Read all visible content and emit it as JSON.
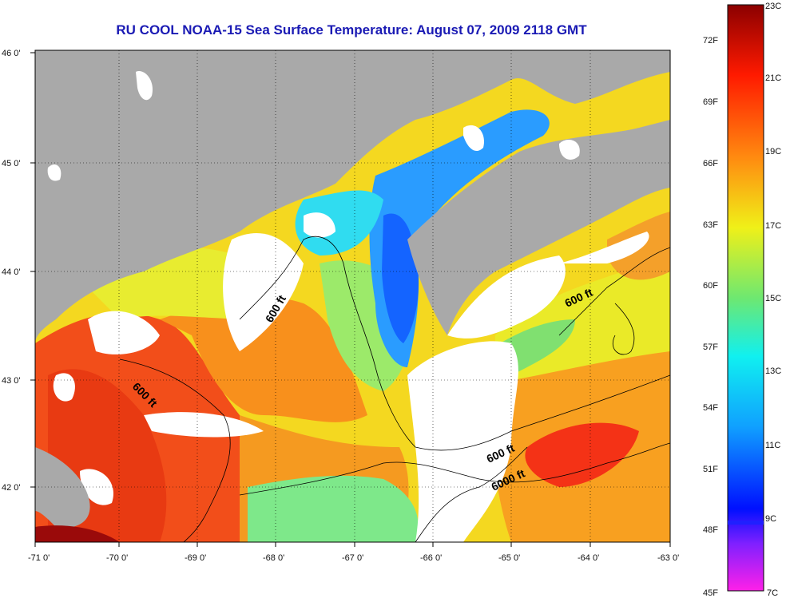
{
  "title": "RU COOL  NOAA-15  Sea Surface Temperature:  August 07, 2009 2118 GMT",
  "map": {
    "x_ticks": [
      "-71 0'",
      "-70 0'",
      "-69 0'",
      "-68 0'",
      "-67 0'",
      "-66 0'",
      "-65 0'",
      "-64 0'",
      "-63 0'"
    ],
    "y_ticks": [
      "46 0'",
      "45 0'",
      "44 0'",
      "43 0'",
      "42 0'"
    ],
    "contour_labels": [
      "600 ft",
      "600 ft",
      "600 ft",
      "600 ft",
      "6000 ft"
    ]
  },
  "colorbar": {
    "celsius": [
      "23C",
      "21C",
      "19C",
      "17C",
      "15C",
      "13C",
      "11C",
      "9C",
      "7C"
    ],
    "fahrenheit": [
      "72F",
      "69F",
      "66F",
      "63F",
      "60F",
      "57F",
      "54F",
      "51F",
      "48F",
      "45F"
    ],
    "colors": {
      "top": "#8b0000",
      "red": "#ff1a00",
      "orange": "#ff9a10",
      "yellow": "#f0f018",
      "green": "#6ee870",
      "cyan": "#10f0f0",
      "blue": "#0010ff",
      "purple": "#8020ff",
      "magenta": "#ff20e8"
    }
  },
  "colors": {
    "land": "#a9a9a9",
    "cloud": "#ffffff",
    "title": "#1a1ab4"
  }
}
